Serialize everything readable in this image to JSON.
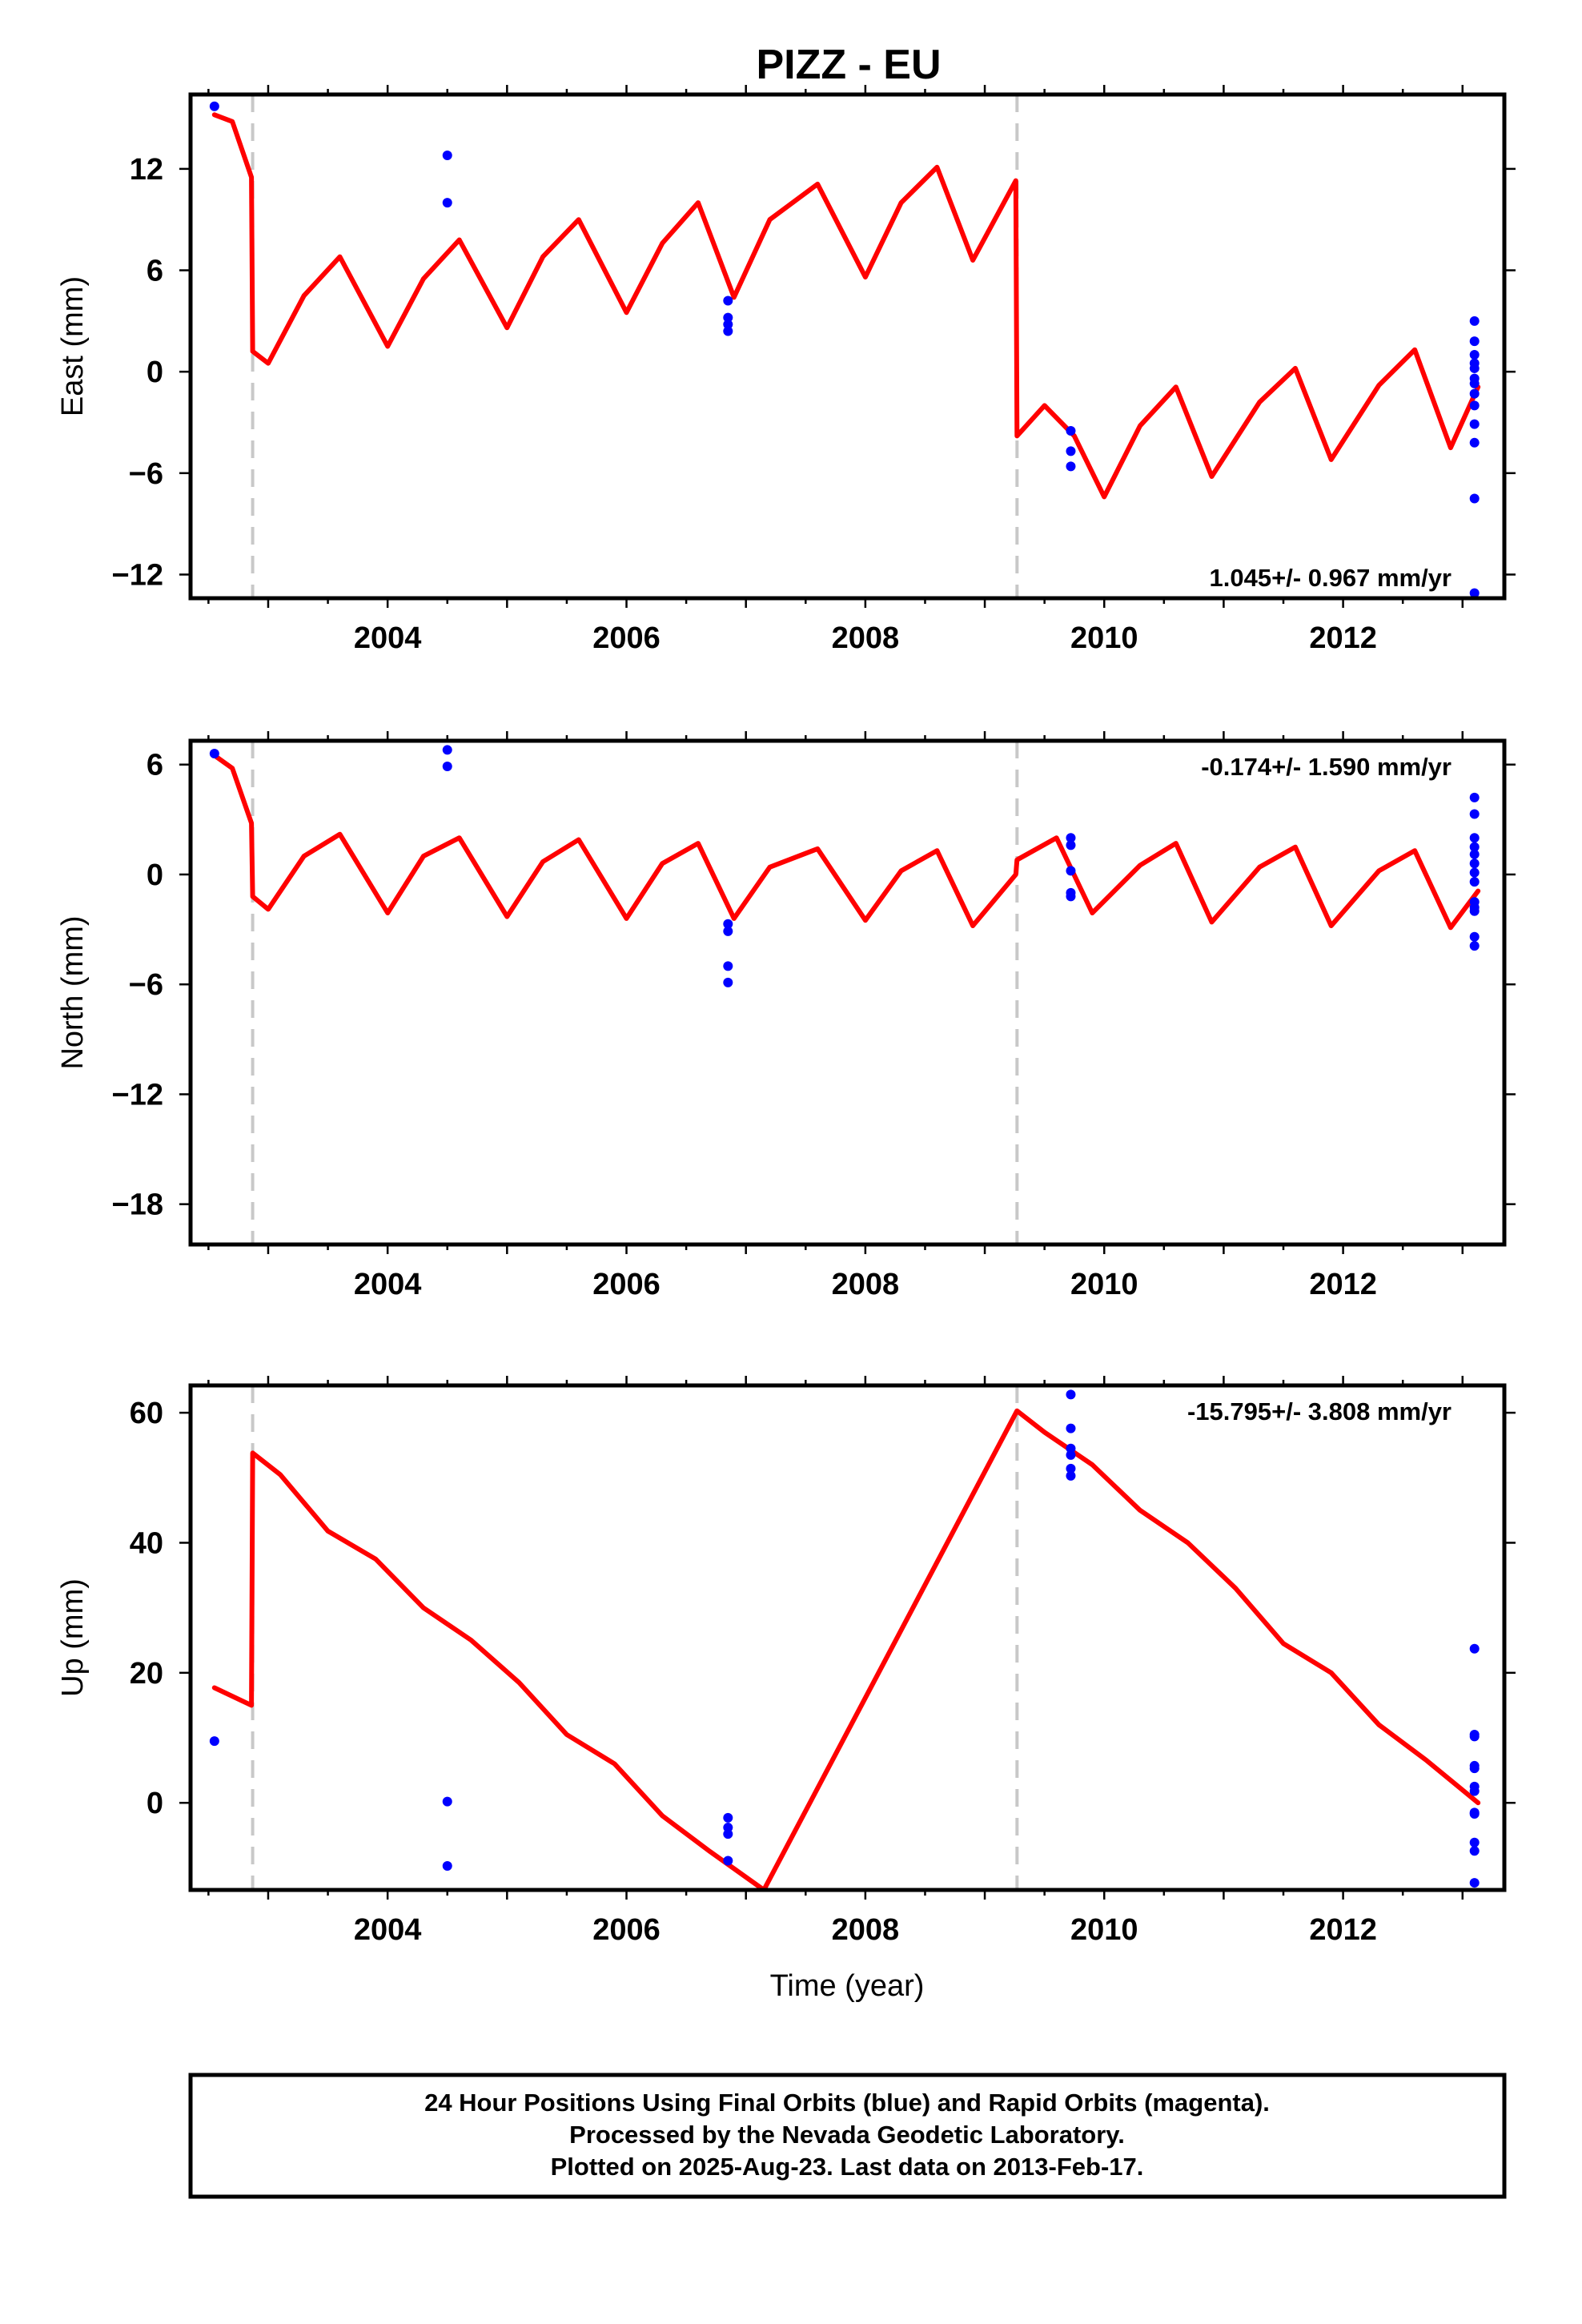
{
  "chart_data": {
    "title": "PIZZ - EU",
    "xlabel": "Time (year)",
    "x_ticks": [
      2004,
      2006,
      2008,
      2010,
      2012
    ],
    "xlim": [
      2002.35,
      2013.35
    ],
    "breaks": [
      2002.87,
      2009.27
    ],
    "series_colors": {
      "model": "#ff0000",
      "observations": "#0000ff",
      "breaks": "#c8c8c8"
    },
    "panels": [
      {
        "id": "east",
        "type": "scatter",
        "ylabel": "East (mm)",
        "ylim": [
          -13.4,
          16.4
        ],
        "y_ticks": [
          12,
          6,
          0,
          -6,
          -12
        ],
        "y_tick_labels": [
          "12",
          "6",
          "0",
          "−6",
          "−12"
        ],
        "rate_text": "1.045+/- 0.967 mm/yr",
        "rate_position": "bottom-right",
        "model": {
          "segments": [
            {
              "x_start": 2002.55,
              "x_end": 2002.87,
              "y_start": 15.2,
              "y_end": 11.0,
              "amplitude": 0.0
            },
            {
              "x_start": 2002.87,
              "x_end": 2009.27,
              "y_start": 1.5,
              "y_end": 11.0,
              "amplitude": 2.8,
              "phase_peak": 2003.58
            },
            {
              "x_start": 2009.27,
              "x_end": 2013.13,
              "y_start": -4.0,
              "y_end": -1.5,
              "amplitude": 2.8,
              "phase_peak": 2003.58
            }
          ],
          "x": [
            2002.55,
            2002.7,
            2002.86,
            2002.87,
            2003.0,
            2003.3,
            2003.6,
            2004.0,
            2004.3,
            2004.6,
            2005.0,
            2005.3,
            2005.6,
            2006.0,
            2006.3,
            2006.6,
            2006.9,
            2007.2,
            2007.6,
            2008.0,
            2008.3,
            2008.6,
            2008.9,
            2009.26,
            2009.27,
            2009.5,
            2009.75,
            2010.0,
            2010.3,
            2010.6,
            2010.9,
            2011.3,
            2011.6,
            2011.9,
            2012.3,
            2012.6,
            2012.9,
            2013.13
          ],
          "y": [
            15.2,
            14.8,
            11.5,
            1.2,
            0.5,
            4.5,
            6.8,
            1.5,
            5.5,
            7.8,
            2.6,
            6.8,
            9.0,
            3.5,
            7.6,
            10.0,
            4.4,
            9.0,
            11.1,
            5.6,
            10.0,
            12.1,
            6.6,
            11.3,
            -3.8,
            -2.0,
            -3.8,
            -7.4,
            -3.2,
            -0.9,
            -6.2,
            -1.8,
            0.2,
            -5.2,
            -0.8,
            1.3,
            -4.5,
            -0.9
          ]
        },
        "points": {
          "x": [
            2002.55,
            2004.5,
            2004.5,
            2006.85,
            2006.85,
            2006.85,
            2006.85,
            2009.72,
            2009.72,
            2009.72,
            2013.1,
            2013.1,
            2013.1,
            2013.1,
            2013.1,
            2013.1,
            2013.1,
            2013.1,
            2013.1,
            2013.1,
            2013.1,
            2013.1,
            2013.1
          ],
          "y": [
            15.7,
            12.8,
            10.0,
            4.2,
            3.2,
            2.8,
            2.4,
            -3.5,
            -4.7,
            -5.6,
            3.0,
            1.8,
            1.0,
            0.5,
            0.2,
            -0.4,
            -0.7,
            -1.3,
            -2.0,
            -3.1,
            -4.2,
            -7.5,
            -13.1
          ]
        }
      },
      {
        "id": "north",
        "type": "scatter",
        "ylabel": "North (mm)",
        "ylim": [
          -20.2,
          7.3
        ],
        "y_ticks": [
          6,
          0,
          -6,
          -12,
          -18
        ],
        "y_tick_labels": [
          "6",
          "0",
          "−6",
          "−12",
          "−18"
        ],
        "rate_text": "-0.174+/- 1.590 mm/yr",
        "rate_position": "top-right",
        "model": {
          "x": [
            2002.55,
            2002.7,
            2002.86,
            2002.87,
            2003.0,
            2003.3,
            2003.6,
            2004.0,
            2004.3,
            2004.6,
            2005.0,
            2005.3,
            2005.6,
            2006.0,
            2006.3,
            2006.6,
            2006.9,
            2007.2,
            2007.6,
            2008.0,
            2008.3,
            2008.6,
            2008.9,
            2009.26,
            2009.27,
            2009.6,
            2009.9,
            2010.3,
            2010.6,
            2010.9,
            2011.3,
            2011.6,
            2011.9,
            2012.3,
            2012.6,
            2012.9,
            2013.13
          ],
          "y": [
            6.5,
            5.8,
            2.8,
            -1.2,
            -1.9,
            1.0,
            2.2,
            -2.1,
            1.0,
            2.0,
            -2.3,
            0.7,
            1.9,
            -2.4,
            0.6,
            1.7,
            -2.4,
            0.4,
            1.4,
            -2.5,
            0.2,
            1.3,
            -2.8,
            0.0,
            0.8,
            2.0,
            -2.1,
            0.5,
            1.7,
            -2.6,
            0.4,
            1.5,
            -2.8,
            0.2,
            1.3,
            -2.9,
            -0.9
          ]
        },
        "points": {
          "x": [
            2002.55,
            2004.5,
            2004.5,
            2006.85,
            2006.85,
            2006.85,
            2006.85,
            2009.72,
            2009.72,
            2009.72,
            2009.72,
            2009.72,
            2013.1,
            2013.1,
            2013.1,
            2013.1,
            2013.1,
            2013.1,
            2013.1,
            2013.1,
            2013.1,
            2013.1,
            2013.1,
            2013.1,
            2013.1
          ],
          "y": [
            6.6,
            6.8,
            5.9,
            -2.7,
            -3.1,
            -5.0,
            -5.9,
            2.0,
            1.6,
            0.2,
            -1.0,
            -1.2,
            4.2,
            3.3,
            2.0,
            1.5,
            1.1,
            0.6,
            0.1,
            -0.4,
            -1.5,
            -1.8,
            -2.0,
            -3.4,
            -3.9
          ]
        }
      },
      {
        "id": "up",
        "type": "scatter",
        "ylabel": "Up (mm)",
        "ylim": [
          -13.4,
          64.2
        ],
        "y_ticks": [
          60,
          40,
          20,
          0
        ],
        "y_tick_labels": [
          "60",
          "40",
          "20",
          "0"
        ],
        "rate_text": "-15.795+/- 3.808 mm/yr",
        "rate_position": "top-right",
        "model": {
          "x": [
            2002.55,
            2002.86,
            2002.87,
            2003.1,
            2003.5,
            2003.9,
            2004.3,
            2004.7,
            2005.1,
            2005.5,
            2005.9,
            2006.3,
            2006.7,
            2007.15,
            2009.27,
            2009.5,
            2009.9,
            2010.3,
            2010.7,
            2011.1,
            2011.5,
            2011.9,
            2012.3,
            2012.7,
            2013.13
          ],
          "y": [
            17.7,
            15.0,
            53.8,
            50.5,
            41.8,
            37.5,
            30.0,
            25.0,
            18.5,
            10.5,
            6.0,
            -2.0,
            -7.5,
            -13.4,
            60.3,
            57.0,
            52.0,
            45.0,
            40.0,
            33.0,
            24.5,
            20.0,
            12.0,
            6.5,
            0.0
          ]
        },
        "points": {
          "x": [
            2002.55,
            2004.5,
            2004.5,
            2006.85,
            2006.85,
            2006.85,
            2006.85,
            2009.72,
            2009.72,
            2009.72,
            2009.72,
            2009.72,
            2009.72,
            2013.1,
            2013.1,
            2013.1,
            2013.1,
            2013.1,
            2013.1,
            2013.1,
            2013.1,
            2013.1,
            2013.1,
            2013.1,
            2013.1
          ],
          "y": [
            9.5,
            0.2,
            -9.7,
            -2.3,
            -3.8,
            -4.8,
            -8.9,
            62.8,
            57.6,
            54.5,
            53.5,
            51.4,
            50.3,
            23.7,
            10.5,
            10.2,
            5.7,
            5.3,
            2.5,
            1.8,
            -1.5,
            -1.7,
            -6.1,
            -7.4,
            -12.3
          ]
        }
      }
    ]
  },
  "caption": {
    "line1": "24 Hour Positions Using Final Orbits (blue) and Rapid Orbits (magenta).",
    "line2": "Processed by the Nevada Geodetic Laboratory.",
    "line3": "Plotted on 2025-Aug-23. Last data on 2013-Feb-17."
  }
}
